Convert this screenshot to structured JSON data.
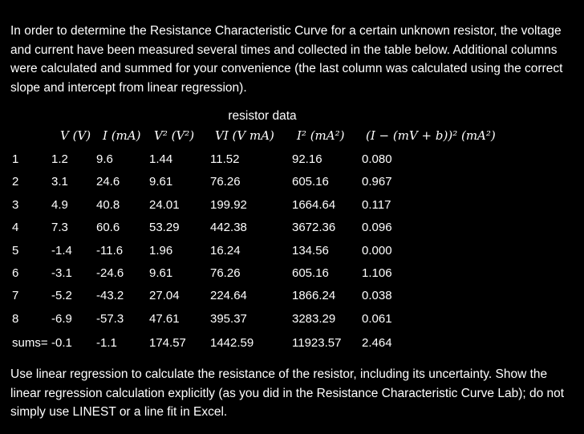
{
  "intro": "In order to determine the Resistance Characteristic Curve for a certain unknown resistor, the voltage and current have been measured several times and collected in the table below. Additional columns were calculated and summed for your convenience (the last column was calculated using the correct slope and intercept from linear regression).",
  "table": {
    "caption": "resistor data",
    "headers": {
      "v": "V (V)",
      "i": "I (mA)",
      "v2": "V² (V²)",
      "vi": "VI (V mA)",
      "i2": "I² (mA²)",
      "res": "(I − (mV + b))² (mA²)"
    },
    "rows": [
      {
        "n": "1",
        "v": "1.2",
        "i": "9.6",
        "v2": "1.44",
        "vi": "11.52",
        "i2": "92.16",
        "res": "0.080"
      },
      {
        "n": "2",
        "v": "3.1",
        "i": "24.6",
        "v2": "9.61",
        "vi": "76.26",
        "i2": "605.16",
        "res": "0.967"
      },
      {
        "n": "3",
        "v": "4.9",
        "i": "40.8",
        "v2": "24.01",
        "vi": "199.92",
        "i2": "1664.64",
        "res": "0.117"
      },
      {
        "n": "4",
        "v": "7.3",
        "i": "60.6",
        "v2": "53.29",
        "vi": "442.38",
        "i2": "3672.36",
        "res": "0.096"
      },
      {
        "n": "5",
        "v": "-1.4",
        "i": "-11.6",
        "v2": "1.96",
        "vi": "16.24",
        "i2": "134.56",
        "res": "0.000"
      },
      {
        "n": "6",
        "v": "-3.1",
        "i": "-24.6",
        "v2": "9.61",
        "vi": "76.26",
        "i2": "605.16",
        "res": "1.106"
      },
      {
        "n": "7",
        "v": "-5.2",
        "i": "-43.2",
        "v2": "27.04",
        "vi": "224.64",
        "i2": "1866.24",
        "res": "0.038"
      },
      {
        "n": "8",
        "v": "-6.9",
        "i": "-57.3",
        "v2": "47.61",
        "vi": "395.37",
        "i2": "3283.29",
        "res": "0.061"
      }
    ],
    "sums": {
      "label": "sums=",
      "v": "-0.1",
      "i": "-1.1",
      "v2": "174.57",
      "vi": "1442.59",
      "i2": "11923.57",
      "res": "2.464"
    }
  },
  "outro": "Use linear regression to calculate the resistance of the resistor, including its uncertainty. Show the linear regression calculation explicitly (as you did in the Resistance Characteristic Curve Lab); do not simply use LINEST or a line fit in Excel."
}
